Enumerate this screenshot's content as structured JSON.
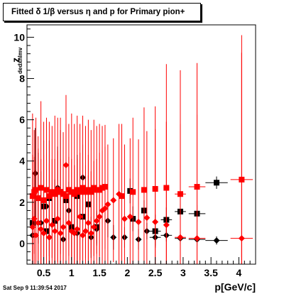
{
  "title": "Fitted δ 1/β versus η and p for Primary pion+",
  "timestamp": "Sat Sep  9 11:39:54 2017",
  "colors": {
    "series_black": "#000000",
    "series_red": "#ff0000",
    "frame": "#000000"
  },
  "chart_data": {
    "type": "scatter",
    "title": "Fitted δ 1/β versus η and p for Primary pion+",
    "xlabel": "p[GeV/c]",
    "ylabel": "z",
    "ylabel_subscript": "dedxnlmv",
    "xlim": [
      0.2,
      4.3
    ],
    "ylim": [
      -1.0,
      10.6
    ],
    "xticks": [
      0.5,
      1,
      1.5,
      2,
      2.5,
      3,
      3.5,
      4
    ],
    "xtick_labels": [
      "0.5",
      "1",
      "1.5",
      "2",
      "2.5",
      "3",
      "3.5",
      "4"
    ],
    "yticks": [
      0,
      2,
      4,
      6,
      8,
      10
    ],
    "ytick_labels": [
      "0",
      "2",
      "4",
      "6",
      "8",
      "10"
    ],
    "grid": false,
    "series": [
      {
        "color": "#000000",
        "marker": "square",
        "x": [
          0.3,
          0.4,
          0.5,
          0.55,
          0.6,
          0.7,
          0.8,
          0.9,
          1.0,
          1.1,
          1.2,
          1.3,
          1.45,
          2.05,
          2.1,
          2.3,
          2.5,
          2.7,
          2.95,
          3.25,
          3.6
        ],
        "y": [
          1.0,
          2.2,
          1.8,
          0.6,
          2.2,
          1.1,
          2.5,
          2.1,
          0.8,
          2.3,
          1.3,
          1.9,
          0.8,
          2.55,
          1.2,
          1.6,
          0.6,
          1.15,
          1.55,
          1.45,
          2.95
        ],
        "xerr": [
          0.03,
          0.03,
          0.03,
          0.03,
          0.03,
          0.05,
          0.05,
          0.05,
          0.05,
          0.05,
          0.05,
          0.05,
          0.05,
          0.05,
          0.05,
          0.05,
          0.1,
          0.1,
          0.1,
          0.15,
          0.2
        ],
        "yerr": [
          2.5,
          2.2,
          3.2,
          1.5,
          2.8,
          2.0,
          3.0,
          1.8,
          1.6,
          2.0,
          1.2,
          1.4,
          0.8,
          0.6,
          0.6,
          0.5,
          0.8,
          0.6,
          0.4,
          0.4,
          0.3
        ]
      },
      {
        "color": "#000000",
        "marker": "diamond",
        "x": [
          0.3,
          0.35,
          0.45,
          0.55,
          0.6,
          0.75,
          0.85,
          0.95,
          1.1,
          1.2,
          1.35,
          1.45,
          1.65,
          1.75,
          1.95,
          2.2,
          2.35,
          2.5,
          2.7,
          2.95,
          3.25,
          3.6
        ],
        "y": [
          0.4,
          3.4,
          1.0,
          1.8,
          0.3,
          2.7,
          0.2,
          1.6,
          0.5,
          3.2,
          0.3,
          0.7,
          1.1,
          0.3,
          0.3,
          0.2,
          0.6,
          0.3,
          0.4,
          0.25,
          0.2,
          0.15
        ],
        "xerr": [
          0.03,
          0.03,
          0.03,
          0.03,
          0.03,
          0.05,
          0.05,
          0.05,
          0.05,
          0.05,
          0.05,
          0.05,
          0.05,
          0.05,
          0.05,
          0.05,
          0.05,
          0.1,
          0.1,
          0.1,
          0.15,
          0.2
        ],
        "yerr": [
          2.0,
          2.2,
          2.5,
          1.5,
          1.8,
          2.0,
          1.6,
          1.4,
          1.8,
          1.6,
          1.0,
          0.8,
          0.8,
          0.6,
          0.5,
          0.5,
          0.4,
          0.4,
          0.3,
          0.3,
          0.3,
          0.2
        ]
      },
      {
        "color": "#ff0000",
        "marker": "square",
        "x": [
          0.3,
          0.33,
          0.36,
          0.4,
          0.45,
          0.5,
          0.55,
          0.6,
          0.65,
          0.7,
          0.75,
          0.8,
          0.85,
          0.9,
          0.95,
          1.0,
          1.05,
          1.1,
          1.15,
          1.2,
          1.25,
          1.3,
          1.35,
          1.4,
          1.45,
          1.5,
          1.55,
          1.6,
          1.9,
          2.1,
          2.3,
          2.5,
          2.7,
          2.95,
          3.25,
          4.05
        ],
        "y": [
          2.3,
          2.5,
          2.6,
          2.2,
          2.7,
          2.1,
          2.6,
          2.3,
          2.5,
          2.4,
          2.6,
          2.5,
          2.4,
          2.3,
          2.6,
          2.5,
          2.4,
          2.6,
          2.5,
          2.7,
          2.5,
          2.6,
          2.5,
          2.7,
          2.6,
          2.6,
          2.7,
          2.75,
          2.3,
          2.5,
          2.6,
          2.65,
          2.7,
          2.4,
          2.75,
          3.1
        ],
        "xerr": [
          0.015,
          0.015,
          0.015,
          0.02,
          0.02,
          0.025,
          0.025,
          0.025,
          0.025,
          0.025,
          0.025,
          0.025,
          0.025,
          0.025,
          0.025,
          0.025,
          0.025,
          0.025,
          0.025,
          0.025,
          0.025,
          0.025,
          0.025,
          0.025,
          0.025,
          0.025,
          0.025,
          0.025,
          0.05,
          0.05,
          0.05,
          0.05,
          0.05,
          0.1,
          0.15,
          0.2
        ],
        "yerr": [
          4.0,
          3.0,
          3.5,
          3.0,
          4.2,
          3.8,
          3.5,
          3.6,
          3.2,
          3.8,
          3.5,
          3.6,
          3.0,
          3.5,
          3.2,
          3.8,
          3.4,
          3.6,
          3.3,
          3.5,
          3.2,
          3.4,
          3.0,
          3.3,
          3.1,
          3.2,
          3.0,
          3.0,
          3.5,
          3.6,
          4.0,
          4.0,
          6.0,
          6.0,
          6.0,
          7.0
        ]
      },
      {
        "color": "#ff0000",
        "marker": "diamond",
        "x": [
          0.3,
          0.33,
          0.36,
          0.4,
          0.45,
          0.5,
          0.55,
          0.6,
          0.65,
          0.7,
          0.75,
          0.8,
          0.85,
          0.9,
          0.95,
          1.0,
          1.05,
          1.1,
          1.15,
          1.2,
          1.25,
          1.3,
          1.35,
          1.4,
          1.45,
          1.5,
          1.55,
          1.6,
          1.65,
          1.75,
          1.85,
          1.95,
          2.05,
          2.2,
          2.35,
          2.5,
          2.7,
          2.95,
          3.25,
          4.05
        ],
        "y": [
          0.8,
          1.2,
          0.4,
          1.0,
          0.7,
          0.5,
          1.1,
          0.3,
          0.9,
          0.6,
          1.2,
          0.5,
          0.8,
          3.8,
          1.0,
          0.6,
          0.5,
          0.7,
          1.3,
          0.4,
          0.6,
          1.0,
          0.5,
          0.8,
          1.1,
          1.3,
          1.6,
          1.7,
          1.9,
          2.1,
          2.4,
          1.2,
          1.3,
          1.05,
          1.25,
          1.05,
          0.9,
          0.3,
          0.25,
          0.25
        ],
        "xerr": [
          0.015,
          0.015,
          0.015,
          0.02,
          0.02,
          0.025,
          0.025,
          0.025,
          0.025,
          0.025,
          0.025,
          0.025,
          0.025,
          0.025,
          0.025,
          0.025,
          0.025,
          0.025,
          0.025,
          0.025,
          0.025,
          0.025,
          0.025,
          0.025,
          0.025,
          0.025,
          0.025,
          0.025,
          0.025,
          0.05,
          0.05,
          0.05,
          0.05,
          0.05,
          0.05,
          0.05,
          0.05,
          0.1,
          0.15,
          0.2
        ],
        "yerr": [
          3.5,
          3.0,
          3.2,
          3.6,
          3.4,
          3.8,
          3.3,
          3.6,
          3.2,
          3.5,
          3.3,
          3.6,
          3.0,
          3.4,
          3.2,
          3.5,
          3.3,
          3.4,
          3.1,
          3.5,
          3.2,
          3.3,
          3.0,
          3.2,
          3.0,
          3.1,
          2.9,
          3.0,
          2.9,
          3.0,
          3.4,
          3.6,
          3.8,
          4.0,
          4.2,
          4.5,
          5.0,
          5.5,
          6.0,
          9.0
        ]
      }
    ]
  }
}
